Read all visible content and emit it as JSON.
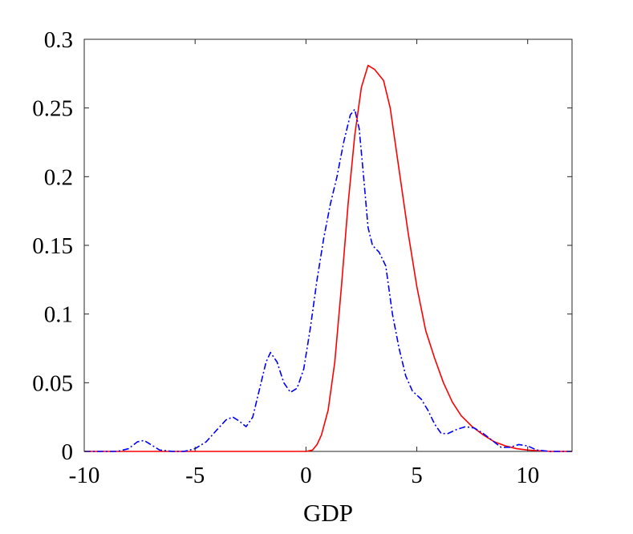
{
  "chart_data": {
    "type": "line",
    "title": "",
    "xlabel": "GDP",
    "ylabel": "",
    "xlim": [
      -10,
      12
    ],
    "ylim": [
      0,
      0.3
    ],
    "xticks": [
      -10,
      -5,
      0,
      5,
      10
    ],
    "xtick_labels": [
      "-10",
      "-5",
      "0",
      "5",
      "10"
    ],
    "yticks": [
      0,
      0.05,
      0.1,
      0.15,
      0.2,
      0.25,
      0.3
    ],
    "ytick_labels": [
      "0",
      "0.05",
      "0.1",
      "0.15",
      "0.2",
      "0.25",
      "0.3"
    ],
    "grid": false,
    "legend": "none",
    "series": [
      {
        "color": "#ff0000",
        "line_style": "solid",
        "points": [
          [
            -10,
            0
          ],
          [
            0,
            0
          ],
          [
            0.3,
            0.001
          ],
          [
            0.5,
            0.005
          ],
          [
            0.7,
            0.012
          ],
          [
            1.0,
            0.03
          ],
          [
            1.3,
            0.065
          ],
          [
            1.6,
            0.12
          ],
          [
            1.9,
            0.18
          ],
          [
            2.2,
            0.23
          ],
          [
            2.5,
            0.265
          ],
          [
            2.8,
            0.281
          ],
          [
            3.1,
            0.278
          ],
          [
            3.5,
            0.27
          ],
          [
            3.8,
            0.25
          ],
          [
            4.2,
            0.205
          ],
          [
            4.6,
            0.16
          ],
          [
            5.0,
            0.12
          ],
          [
            5.4,
            0.088
          ],
          [
            5.8,
            0.068
          ],
          [
            6.2,
            0.05
          ],
          [
            6.6,
            0.036
          ],
          [
            7.0,
            0.026
          ],
          [
            7.5,
            0.018
          ],
          [
            8.0,
            0.012
          ],
          [
            8.5,
            0.007
          ],
          [
            9.0,
            0.004
          ],
          [
            9.5,
            0.002
          ],
          [
            10.0,
            0.001
          ],
          [
            11.0,
            0
          ],
          [
            12,
            0
          ]
        ]
      },
      {
        "color": "#0000ff",
        "line_style": "dash-dot",
        "points": [
          [
            -10,
            0
          ],
          [
            -8.5,
            0
          ],
          [
            -8.0,
            0.002
          ],
          [
            -7.6,
            0.007
          ],
          [
            -7.3,
            0.008
          ],
          [
            -7.0,
            0.005
          ],
          [
            -6.6,
            0.001
          ],
          [
            -6.0,
            0
          ],
          [
            -5.5,
            0
          ],
          [
            -5.0,
            0.002
          ],
          [
            -4.5,
            0.007
          ],
          [
            -4.0,
            0.016
          ],
          [
            -3.6,
            0.023
          ],
          [
            -3.3,
            0.025
          ],
          [
            -3.0,
            0.022
          ],
          [
            -2.7,
            0.018
          ],
          [
            -2.4,
            0.025
          ],
          [
            -2.1,
            0.045
          ],
          [
            -1.8,
            0.065
          ],
          [
            -1.6,
            0.072
          ],
          [
            -1.3,
            0.065
          ],
          [
            -1.0,
            0.05
          ],
          [
            -0.7,
            0.043
          ],
          [
            -0.4,
            0.046
          ],
          [
            -0.1,
            0.06
          ],
          [
            0.2,
            0.09
          ],
          [
            0.5,
            0.125
          ],
          [
            0.8,
            0.155
          ],
          [
            1.1,
            0.18
          ],
          [
            1.4,
            0.2
          ],
          [
            1.7,
            0.225
          ],
          [
            2.0,
            0.245
          ],
          [
            2.2,
            0.249
          ],
          [
            2.4,
            0.235
          ],
          [
            2.6,
            0.2
          ],
          [
            2.8,
            0.163
          ],
          [
            3.0,
            0.15
          ],
          [
            3.3,
            0.145
          ],
          [
            3.6,
            0.135
          ],
          [
            3.9,
            0.1
          ],
          [
            4.2,
            0.075
          ],
          [
            4.5,
            0.055
          ],
          [
            4.8,
            0.044
          ],
          [
            5.2,
            0.038
          ],
          [
            5.5,
            0.03
          ],
          [
            5.8,
            0.02
          ],
          [
            6.1,
            0.013
          ],
          [
            6.4,
            0.013
          ],
          [
            6.8,
            0.016
          ],
          [
            7.2,
            0.018
          ],
          [
            7.6,
            0.017
          ],
          [
            8.0,
            0.013
          ],
          [
            8.4,
            0.008
          ],
          [
            8.8,
            0.003
          ],
          [
            9.2,
            0.003
          ],
          [
            9.6,
            0.005
          ],
          [
            10.0,
            0.004
          ],
          [
            10.4,
            0.001
          ],
          [
            11.0,
            0
          ],
          [
            12,
            0
          ]
        ]
      }
    ]
  }
}
